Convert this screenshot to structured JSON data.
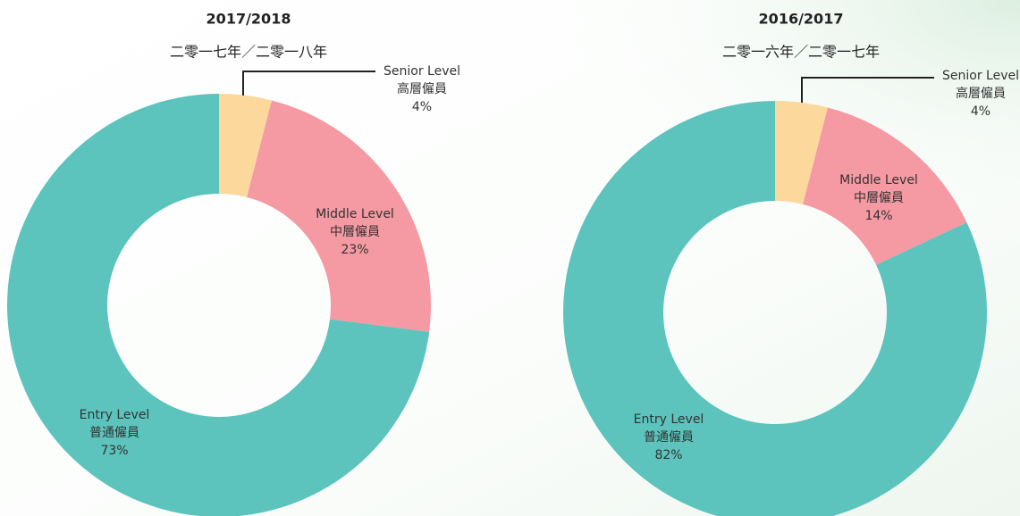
{
  "chart_data": [
    {
      "type": "pie",
      "title": "2017/2018",
      "subtitle": "二零一七年／二零一八年",
      "categories": [
        "Senior Level",
        "Middle Level",
        "Entry Level"
      ],
      "categories_zh": [
        "高層僱員",
        "中層僱員",
        "普通僱員"
      ],
      "values": [
        4,
        23,
        73
      ],
      "value_labels": [
        "4%",
        "23%",
        "73%"
      ],
      "colors": [
        "#fdd89c",
        "#f599a3",
        "#5cc4bd"
      ],
      "donut": true
    },
    {
      "type": "pie",
      "title": "2016/2017",
      "subtitle": "二零一六年／二零一七年",
      "categories": [
        "Senior Level",
        "Middle Level",
        "Entry Level"
      ],
      "categories_zh": [
        "高層僱員",
        "中層僱員",
        "普通僱員"
      ],
      "values": [
        4,
        14,
        82
      ],
      "value_labels": [
        "4%",
        "14%",
        "82%"
      ],
      "colors": [
        "#fdd89c",
        "#f599a3",
        "#5cc4bd"
      ],
      "donut": true
    }
  ]
}
